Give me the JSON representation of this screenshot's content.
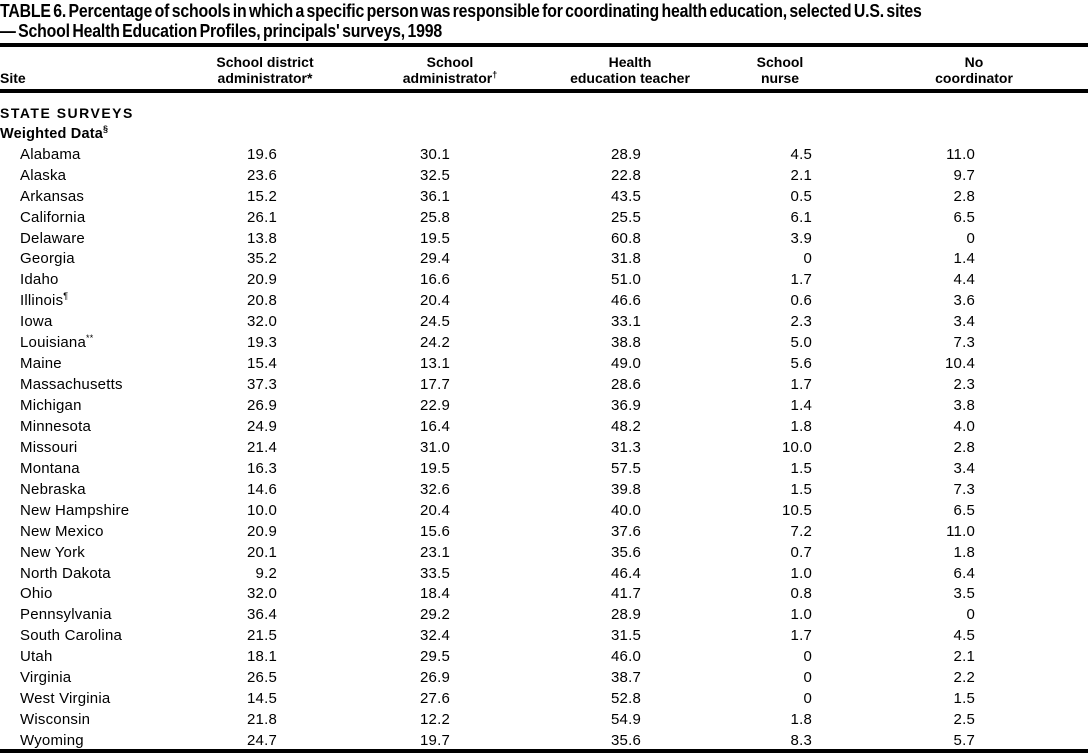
{
  "title": {
    "line1": "TABLE 6. Percentage of schools in which a specific person was responsible for coordinating health education, selected U.S. sites",
    "line2": "— School Health Education Profiles, principals' surveys, 1998"
  },
  "table": {
    "site_header": "Site",
    "columns": [
      {
        "line1": "School district",
        "line2": "administrator*",
        "sup": ""
      },
      {
        "line1": "School",
        "line2": "administrator",
        "sup": "†"
      },
      {
        "line1": "Health",
        "line2": "education teacher",
        "sup": ""
      },
      {
        "line1": "School",
        "line2": "nurse",
        "sup": ""
      },
      {
        "line1": "No",
        "line2": "coordinator",
        "sup": ""
      }
    ],
    "section_header": "STATE SURVEYS",
    "subsection": {
      "label": "Weighted Data",
      "sup": "§"
    },
    "rows": [
      {
        "site": "Alabama",
        "sup": "",
        "values": [
          "19.6",
          "30.1",
          "28.9",
          "4.5",
          "11.0"
        ]
      },
      {
        "site": "Alaska",
        "sup": "",
        "values": [
          "23.6",
          "32.5",
          "22.8",
          "2.1",
          "9.7"
        ]
      },
      {
        "site": "Arkansas",
        "sup": "",
        "values": [
          "15.2",
          "36.1",
          "43.5",
          "0.5",
          "2.8"
        ]
      },
      {
        "site": "California",
        "sup": "",
        "values": [
          "26.1",
          "25.8",
          "25.5",
          "6.1",
          "6.5"
        ]
      },
      {
        "site": "Delaware",
        "sup": "",
        "values": [
          "13.8",
          "19.5",
          "60.8",
          "3.9",
          "0"
        ]
      },
      {
        "site": "Georgia",
        "sup": "",
        "values": [
          "35.2",
          "29.4",
          "31.8",
          "0",
          "1.4"
        ]
      },
      {
        "site": "Idaho",
        "sup": "",
        "values": [
          "20.9",
          "16.6",
          "51.0",
          "1.7",
          "4.4"
        ]
      },
      {
        "site": "Illinois",
        "sup": "¶",
        "values": [
          "20.8",
          "20.4",
          "46.6",
          "0.6",
          "3.6"
        ]
      },
      {
        "site": "Iowa",
        "sup": "",
        "values": [
          "32.0",
          "24.5",
          "33.1",
          "2.3",
          "3.4"
        ]
      },
      {
        "site": "Louisiana",
        "sup": "**",
        "values": [
          "19.3",
          "24.2",
          "38.8",
          "5.0",
          "7.3"
        ]
      },
      {
        "site": "Maine",
        "sup": "",
        "values": [
          "15.4",
          "13.1",
          "49.0",
          "5.6",
          "10.4"
        ]
      },
      {
        "site": "Massachusetts",
        "sup": "",
        "values": [
          "37.3",
          "17.7",
          "28.6",
          "1.7",
          "2.3"
        ]
      },
      {
        "site": "Michigan",
        "sup": "",
        "values": [
          "26.9",
          "22.9",
          "36.9",
          "1.4",
          "3.8"
        ]
      },
      {
        "site": "Minnesota",
        "sup": "",
        "values": [
          "24.9",
          "16.4",
          "48.2",
          "1.8",
          "4.0"
        ]
      },
      {
        "site": "Missouri",
        "sup": "",
        "values": [
          "21.4",
          "31.0",
          "31.3",
          "10.0",
          "2.8"
        ]
      },
      {
        "site": "Montana",
        "sup": "",
        "values": [
          "16.3",
          "19.5",
          "57.5",
          "1.5",
          "3.4"
        ]
      },
      {
        "site": "Nebraska",
        "sup": "",
        "values": [
          "14.6",
          "32.6",
          "39.8",
          "1.5",
          "7.3"
        ]
      },
      {
        "site": "New Hampshire",
        "sup": "",
        "values": [
          "10.0",
          "20.4",
          "40.0",
          "10.5",
          "6.5"
        ]
      },
      {
        "site": "New Mexico",
        "sup": "",
        "values": [
          "20.9",
          "15.6",
          "37.6",
          "7.2",
          "11.0"
        ]
      },
      {
        "site": "New York",
        "sup": "",
        "values": [
          "20.1",
          "23.1",
          "35.6",
          "0.7",
          "1.8"
        ]
      },
      {
        "site": "North Dakota",
        "sup": "",
        "values": [
          "9.2",
          "33.5",
          "46.4",
          "1.0",
          "6.4"
        ]
      },
      {
        "site": "Ohio",
        "sup": "",
        "values": [
          "32.0",
          "18.4",
          "41.7",
          "0.8",
          "3.5"
        ]
      },
      {
        "site": "Pennsylvania",
        "sup": "",
        "values": [
          "36.4",
          "29.2",
          "28.9",
          "1.0",
          "0"
        ]
      },
      {
        "site": "South Carolina",
        "sup": "",
        "values": [
          "21.5",
          "32.4",
          "31.5",
          "1.7",
          "4.5"
        ]
      },
      {
        "site": "Utah",
        "sup": "",
        "values": [
          "18.1",
          "29.5",
          "46.0",
          "0",
          "2.1"
        ]
      },
      {
        "site": "Virginia",
        "sup": "",
        "values": [
          "26.5",
          "26.9",
          "38.7",
          "0",
          "2.2"
        ]
      },
      {
        "site": "West Virginia",
        "sup": "",
        "values": [
          "14.5",
          "27.6",
          "52.8",
          "0",
          "1.5"
        ]
      },
      {
        "site": "Wisconsin",
        "sup": "",
        "values": [
          "21.8",
          "12.2",
          "54.9",
          "1.8",
          "2.5"
        ]
      },
      {
        "site": "Wyoming",
        "sup": "",
        "values": [
          "24.7",
          "19.7",
          "35.6",
          "8.3",
          "5.7"
        ]
      }
    ]
  }
}
